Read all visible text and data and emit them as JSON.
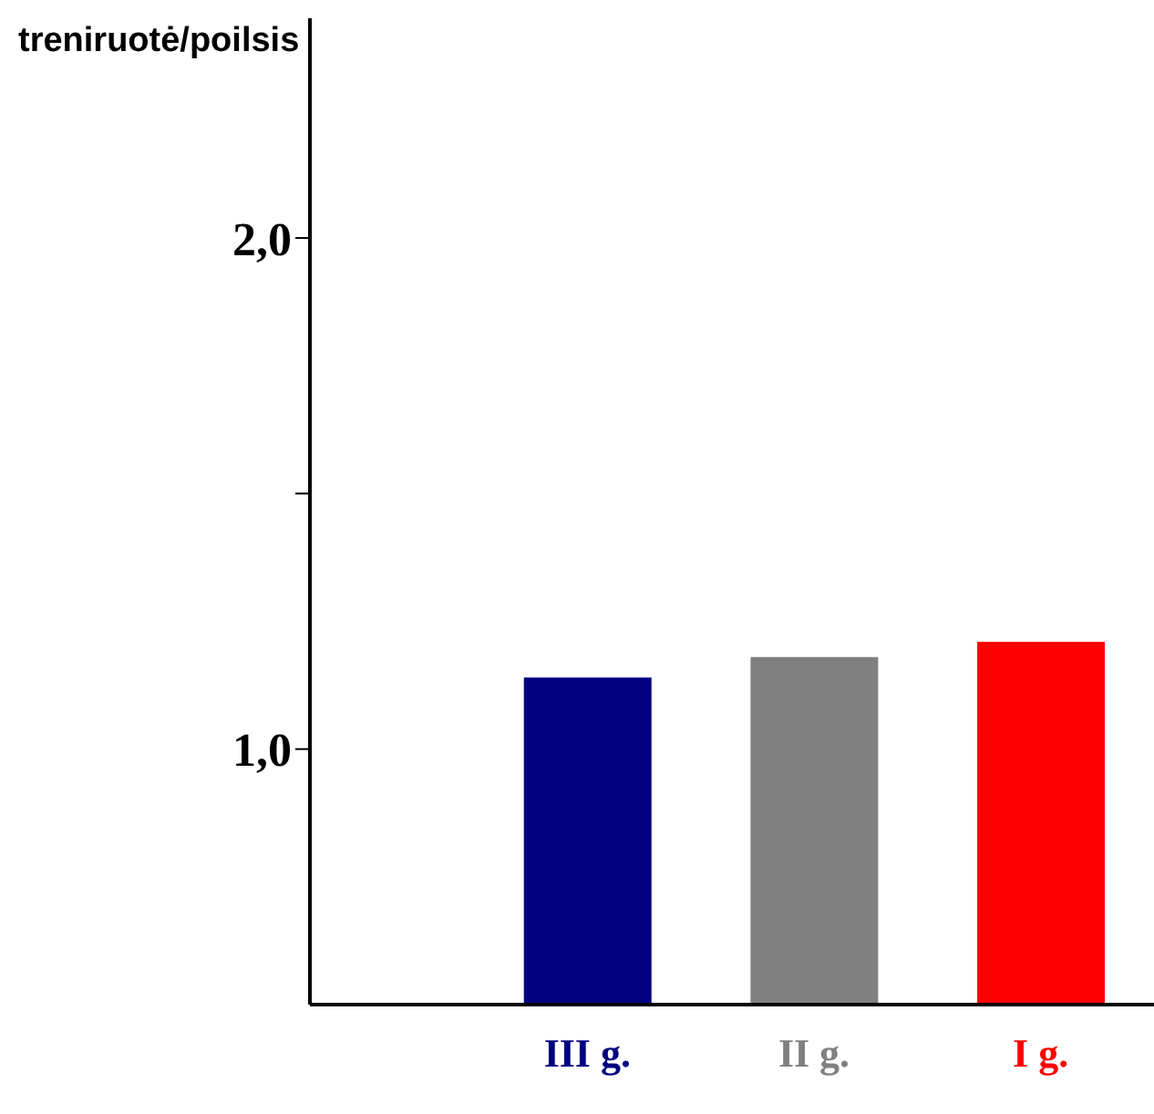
{
  "chart_data": {
    "type": "bar",
    "ylabel": "treniruotė/poilsis",
    "categories": [
      "III g.",
      "II g.",
      "I g."
    ],
    "values": [
      1.14,
      1.18,
      1.21
    ],
    "colors": [
      "#000080",
      "#808080",
      "#ff0000"
    ],
    "ylim": [
      0.5,
      2.43
    ],
    "yticks": [
      {
        "value": 1,
        "label": "1,0"
      },
      {
        "value": 1.5,
        "label": null
      },
      {
        "value": 2,
        "label": "2,0"
      }
    ],
    "grid": false,
    "legend": false
  }
}
